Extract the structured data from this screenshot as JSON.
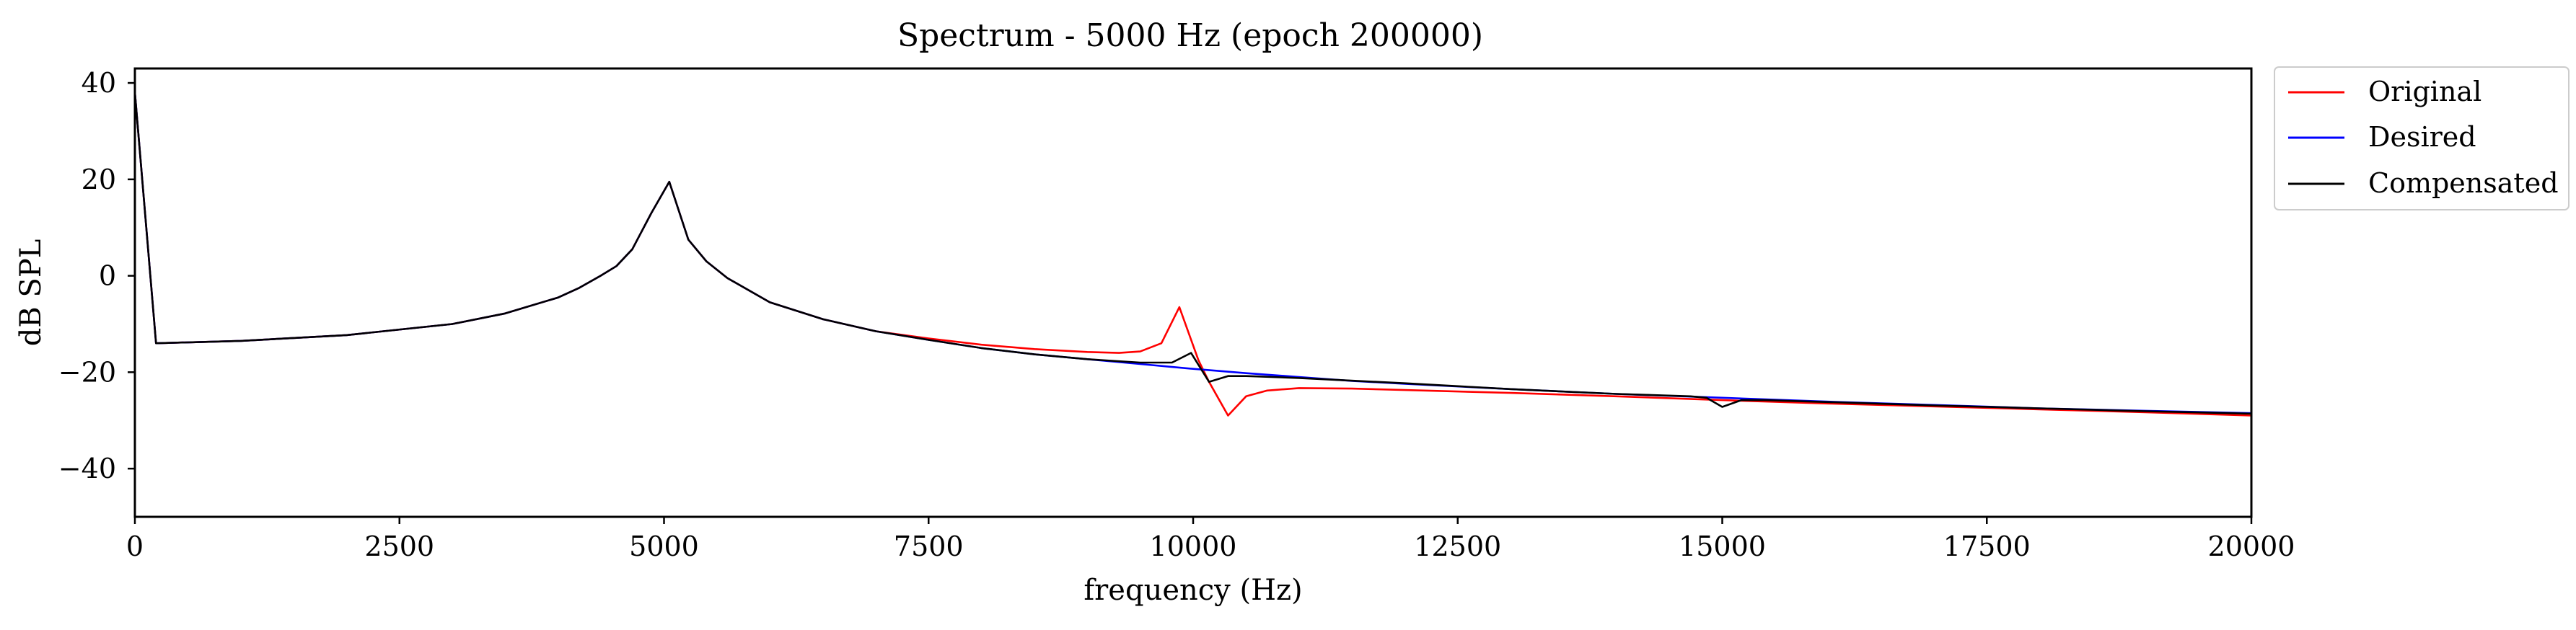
{
  "chart_data": {
    "type": "line",
    "title": "Spectrum - 5000 Hz (epoch 200000)",
    "xlabel": "frequency (Hz)",
    "ylabel": "dB SPL",
    "xlim": [
      0,
      20000
    ],
    "ylim": [
      -50,
      43
    ],
    "xticks": [
      0,
      2500,
      5000,
      7500,
      10000,
      12500,
      15000,
      17500,
      20000
    ],
    "xtick_labels": [
      "0",
      "2500",
      "5000",
      "7500",
      "10000",
      "12500",
      "15000",
      "17500",
      "20000"
    ],
    "yticks": [
      -40,
      -20,
      0,
      20,
      40
    ],
    "ytick_labels": [
      "−40",
      "−20",
      "0",
      "20",
      "40"
    ],
    "grid": false,
    "legend_position": "outside-right-top",
    "series": [
      {
        "name": "Original",
        "color": "#ff0000",
        "x": [
          0,
          200,
          1000,
          2000,
          3000,
          3500,
          4000,
          4200,
          4400,
          4550,
          4700,
          4880,
          5050,
          5230,
          5400,
          5600,
          6000,
          6500,
          7000,
          7500,
          8000,
          8500,
          9000,
          9300,
          9500,
          9700,
          9870,
          10050,
          10150,
          10330,
          10500,
          10700,
          11000,
          11500,
          12000,
          13000,
          14000,
          15000,
          16000,
          17000,
          18000,
          19000,
          20000
        ],
        "y": [
          38,
          -14,
          -13.5,
          -12.3,
          -10,
          -7.8,
          -4.5,
          -2.5,
          0,
          2,
          5.5,
          13,
          19.5,
          7.5,
          3,
          -0.5,
          -5.5,
          -9,
          -11.5,
          -13,
          -14.3,
          -15.2,
          -15.8,
          -16,
          -15.7,
          -14,
          -6.5,
          -17.5,
          -22,
          -29,
          -25,
          -23.8,
          -23.3,
          -23.4,
          -23.7,
          -24.3,
          -25.0,
          -25.8,
          -26.5,
          -27.1,
          -27.7,
          -28.3,
          -29
        ]
      },
      {
        "name": "Desired",
        "color": "#0000ff",
        "x": [
          0,
          200,
          1000,
          2000,
          3000,
          3500,
          4000,
          4200,
          4400,
          4550,
          4700,
          4880,
          5050,
          5230,
          5400,
          5600,
          6000,
          6500,
          7000,
          7500,
          8000,
          8500,
          9000,
          9500,
          10000,
          10500,
          11000,
          11500,
          12000,
          13000,
          14000,
          15000,
          16000,
          17000,
          18000,
          19000,
          20000
        ],
        "y": [
          38,
          -14,
          -13.5,
          -12.3,
          -10,
          -7.8,
          -4.5,
          -2.5,
          0,
          2,
          5.5,
          13,
          19.5,
          7.5,
          3,
          -0.5,
          -5.5,
          -9,
          -11.5,
          -13.3,
          -15,
          -16.3,
          -17.3,
          -18.3,
          -19.3,
          -20.2,
          -21,
          -21.8,
          -22.4,
          -23.5,
          -24.5,
          -25.3,
          -26.1,
          -26.8,
          -27.5,
          -28,
          -28.5
        ]
      },
      {
        "name": "Compensated",
        "color": "#000000",
        "x": [
          0,
          200,
          1000,
          2000,
          3000,
          3500,
          4000,
          4200,
          4400,
          4550,
          4700,
          4880,
          5050,
          5230,
          5400,
          5600,
          6000,
          6500,
          7000,
          7500,
          8000,
          8500,
          9000,
          9500,
          9800,
          9980,
          10150,
          10330,
          10500,
          11000,
          12000,
          13000,
          14000,
          14700,
          14850,
          15000,
          15180,
          15400,
          16000,
          17000,
          18000,
          19000,
          20000
        ],
        "y": [
          38,
          -14,
          -13.5,
          -12.3,
          -10,
          -7.8,
          -4.5,
          -2.5,
          0,
          2,
          5.5,
          13,
          19.5,
          7.5,
          3,
          -0.5,
          -5.5,
          -9,
          -11.5,
          -13.3,
          -15,
          -16.3,
          -17.3,
          -18,
          -18,
          -16,
          -22,
          -20.8,
          -20.8,
          -21.2,
          -22.3,
          -23.5,
          -24.5,
          -25,
          -25.3,
          -27.2,
          -25.8,
          -25.8,
          -26.2,
          -26.9,
          -27.5,
          -28.1,
          -28.6
        ]
      }
    ]
  }
}
